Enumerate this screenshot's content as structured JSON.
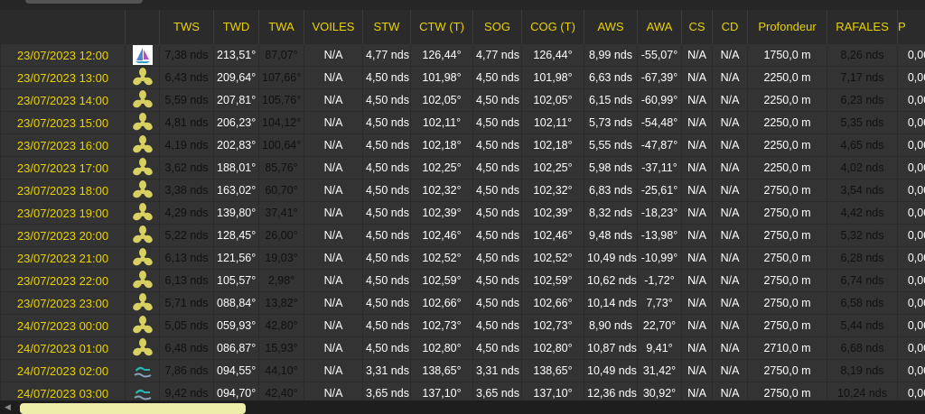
{
  "columns": [
    "TWS",
    "TWD",
    "TWA",
    "VOILES",
    "STW",
    "CTW (T)",
    "SOG",
    "COG (T)",
    "AWS",
    "AWA",
    "CS",
    "CD",
    "Profondeur",
    "RAFALES",
    "P"
  ],
  "rows": [
    {
      "date": "23/07/2023 12:00",
      "icon": "sailboat-icon",
      "tws": "7,38 nds",
      "twd": "213,51°",
      "twa": "87,07°",
      "voiles": "N/A",
      "stw": "4,77 nds",
      "ctw": "126,44°",
      "sog": "4,77 nds",
      "cog": "126,44°",
      "aws": "8,99 nds",
      "awa": "-55,07°",
      "cs": "N/A",
      "cd": "N/A",
      "prof": "1750,0 m",
      "raf": "8,26 nds",
      "p": "0,00",
      "tws_c": "cyan",
      "twa_c": "green",
      "raf_c": "aqua"
    },
    {
      "date": "23/07/2023 13:00",
      "icon": "propeller-icon",
      "tws": "6,43 nds",
      "twd": "209,64°",
      "twa": "107,66°",
      "voiles": "N/A",
      "stw": "4,50 nds",
      "ctw": "101,98°",
      "sog": "4,50 nds",
      "cog": "101,98°",
      "aws": "6,63 nds",
      "awa": "-67,39°",
      "cs": "N/A",
      "cd": "N/A",
      "prof": "2250,0 m",
      "raf": "7,17 nds",
      "p": "0,00",
      "tws_c": "cyan",
      "twa_c": "green",
      "raf_c": "teal"
    },
    {
      "date": "23/07/2023 14:00",
      "icon": "propeller-icon",
      "tws": "5,59 nds",
      "twd": "207,81°",
      "twa": "105,76°",
      "voiles": "N/A",
      "stw": "4,50 nds",
      "ctw": "102,05°",
      "sog": "4,50 nds",
      "cog": "102,05°",
      "aws": "6,15 nds",
      "awa": "-60,99°",
      "cs": "N/A",
      "cd": "N/A",
      "prof": "2250,0 m",
      "raf": "6,23 nds",
      "p": "0,00",
      "tws_c": "cyan",
      "twa_c": "green",
      "raf_c": "teal"
    },
    {
      "date": "23/07/2023 15:00",
      "icon": "propeller-icon",
      "tws": "4,81 nds",
      "twd": "206,23°",
      "twa": "104,12°",
      "voiles": "N/A",
      "stw": "4,50 nds",
      "ctw": "102,11°",
      "sog": "4,50 nds",
      "cog": "102,11°",
      "aws": "5,73 nds",
      "awa": "-54,48°",
      "cs": "N/A",
      "cd": "N/A",
      "prof": "2250,0 m",
      "raf": "5,35 nds",
      "p": "0,00",
      "tws_c": "cyan",
      "twa_c": "green",
      "raf_c": "cyan"
    },
    {
      "date": "23/07/2023 16:00",
      "icon": "propeller-icon",
      "tws": "4,19 nds",
      "twd": "202,83°",
      "twa": "100,64°",
      "voiles": "N/A",
      "stw": "4,50 nds",
      "ctw": "102,18°",
      "sog": "4,50 nds",
      "cog": "102,18°",
      "aws": "5,55 nds",
      "awa": "-47,87°",
      "cs": "N/A",
      "cd": "N/A",
      "prof": "2250,0 m",
      "raf": "4,65 nds",
      "p": "0,00",
      "tws_c": "sky",
      "twa_c": "green",
      "raf_c": "cyan"
    },
    {
      "date": "23/07/2023 17:00",
      "icon": "propeller-icon",
      "tws": "3,62 nds",
      "twd": "188,01°",
      "twa": "85,76°",
      "voiles": "N/A",
      "stw": "4,50 nds",
      "ctw": "102,25°",
      "sog": "4,50 nds",
      "cog": "102,25°",
      "aws": "5,98 nds",
      "awa": "-37,11°",
      "cs": "N/A",
      "cd": "N/A",
      "prof": "2250,0 m",
      "raf": "4,02 nds",
      "p": "0,00",
      "tws_c": "blue",
      "twa_c": "green",
      "raf_c": "sky"
    },
    {
      "date": "23/07/2023 18:00",
      "icon": "propeller-icon",
      "tws": "3,38 nds",
      "twd": "163,02°",
      "twa": "60,70°",
      "voiles": "N/A",
      "stw": "4,50 nds",
      "ctw": "102,32°",
      "sog": "4,50 nds",
      "cog": "102,32°",
      "aws": "6,83 nds",
      "awa": "-25,61°",
      "cs": "N/A",
      "cd": "N/A",
      "prof": "2750,0 m",
      "raf": "3,54 nds",
      "p": "0,00",
      "tws_c": "blue",
      "twa_c": "green",
      "raf_c": "blue"
    },
    {
      "date": "23/07/2023 19:00",
      "icon": "propeller-icon",
      "tws": "4,29 nds",
      "twd": "139,80°",
      "twa": "37,41°",
      "voiles": "N/A",
      "stw": "4,50 nds",
      "ctw": "102,39°",
      "sog": "4,50 nds",
      "cog": "102,39°",
      "aws": "8,32 nds",
      "awa": "-18,23°",
      "cs": "N/A",
      "cd": "N/A",
      "prof": "2750,0 m",
      "raf": "4,42 nds",
      "p": "0,00",
      "tws_c": "sky",
      "twa_c": "green",
      "raf_c": "cyan"
    },
    {
      "date": "23/07/2023 20:00",
      "icon": "propeller-icon",
      "tws": "5,22 nds",
      "twd": "128,45°",
      "twa": "26,00°",
      "voiles": "N/A",
      "stw": "4,50 nds",
      "ctw": "102,46°",
      "sog": "4,50 nds",
      "cog": "102,46°",
      "aws": "9,48 nds",
      "awa": "-13,98°",
      "cs": "N/A",
      "cd": "N/A",
      "prof": "2750,0 m",
      "raf": "5,32 nds",
      "p": "0,00",
      "tws_c": "cyan",
      "twa_c": "green",
      "raf_c": "cyan"
    },
    {
      "date": "23/07/2023 21:00",
      "icon": "propeller-icon",
      "tws": "6,13 nds",
      "twd": "121,56°",
      "twa": "19,03°",
      "voiles": "N/A",
      "stw": "4,50 nds",
      "ctw": "102,52°",
      "sog": "4,50 nds",
      "cog": "102,52°",
      "aws": "10,49 nds",
      "awa": "-10,99°",
      "cs": "N/A",
      "cd": "N/A",
      "prof": "2750,0 m",
      "raf": "6,28 nds",
      "p": "0,00",
      "tws_c": "cyan",
      "twa_c": "green",
      "raf_c": "teal"
    },
    {
      "date": "23/07/2023 22:00",
      "icon": "propeller-icon",
      "tws": "6,13 nds",
      "twd": "105,57°",
      "twa": "2,98°",
      "voiles": "N/A",
      "stw": "4,50 nds",
      "ctw": "102,59°",
      "sog": "4,50 nds",
      "cog": "102,59°",
      "aws": "10,62 nds",
      "awa": "-1,72°",
      "cs": "N/A",
      "cd": "N/A",
      "prof": "2750,0 m",
      "raf": "6,74 nds",
      "p": "0,00",
      "tws_c": "cyan",
      "twa_c": "green",
      "raf_c": "teal"
    },
    {
      "date": "23/07/2023 23:00",
      "icon": "propeller-icon",
      "tws": "5,71 nds",
      "twd": "088,84°",
      "twa": "13,82°",
      "voiles": "N/A",
      "stw": "4,50 nds",
      "ctw": "102,66°",
      "sog": "4,50 nds",
      "cog": "102,66°",
      "aws": "10,14 nds",
      "awa": "7,73°",
      "cs": "N/A",
      "cd": "N/A",
      "prof": "2750,0 m",
      "raf": "6,58 nds",
      "p": "0,00",
      "tws_c": "cyan",
      "twa_c": "red",
      "raf_c": "teal"
    },
    {
      "date": "24/07/2023 00:00",
      "icon": "propeller-icon",
      "tws": "5,05 nds",
      "twd": "059,93°",
      "twa": "42,80°",
      "voiles": "N/A",
      "stw": "4,50 nds",
      "ctw": "102,73°",
      "sog": "4,50 nds",
      "cog": "102,73°",
      "aws": "8,90 nds",
      "awa": "22,70°",
      "cs": "N/A",
      "cd": "N/A",
      "prof": "2750,0 m",
      "raf": "5,44 nds",
      "p": "0,00",
      "tws_c": "cyan",
      "twa_c": "red",
      "raf_c": "cyan"
    },
    {
      "date": "24/07/2023 01:00",
      "icon": "propeller-icon",
      "tws": "6,48 nds",
      "twd": "086,87°",
      "twa": "15,93°",
      "voiles": "N/A",
      "stw": "4,50 nds",
      "ctw": "102,80°",
      "sog": "4,50 nds",
      "cog": "102,80°",
      "aws": "10,87 nds",
      "awa": "9,41°",
      "cs": "N/A",
      "cd": "N/A",
      "prof": "2710,0 m",
      "raf": "6,68 nds",
      "p": "0,00",
      "tws_c": "cyan",
      "twa_c": "red",
      "raf_c": "teal"
    },
    {
      "date": "24/07/2023 02:00",
      "icon": "wave-boat-icon",
      "tws": "7,86 nds",
      "twd": "094,55°",
      "twa": "44,10°",
      "voiles": "N/A",
      "stw": "3,31 nds",
      "ctw": "138,65°",
      "sog": "3,31 nds",
      "cog": "138,65°",
      "aws": "10,49 nds",
      "awa": "31,42°",
      "cs": "N/A",
      "cd": "N/A",
      "prof": "2750,0 m",
      "raf": "8,19 nds",
      "p": "0,00",
      "tws_c": "teal",
      "twa_c": "red",
      "raf_c": "aqua"
    },
    {
      "date": "24/07/2023 03:00",
      "icon": "wave-boat-icon",
      "tws": "9,42 nds",
      "twd": "094,70°",
      "twa": "42,40°",
      "voiles": "N/A",
      "stw": "3,65 nds",
      "ctw": "137,10°",
      "sog": "3,65 nds",
      "cog": "137,10°",
      "aws": "12,36 nds",
      "awa": "30,92°",
      "cs": "N/A",
      "cd": "N/A",
      "prof": "2750,0 m",
      "raf": "10,24 nds",
      "p": "0,00",
      "tws_c": "aqua",
      "twa_c": "red",
      "raf_c": "aqua"
    }
  ]
}
